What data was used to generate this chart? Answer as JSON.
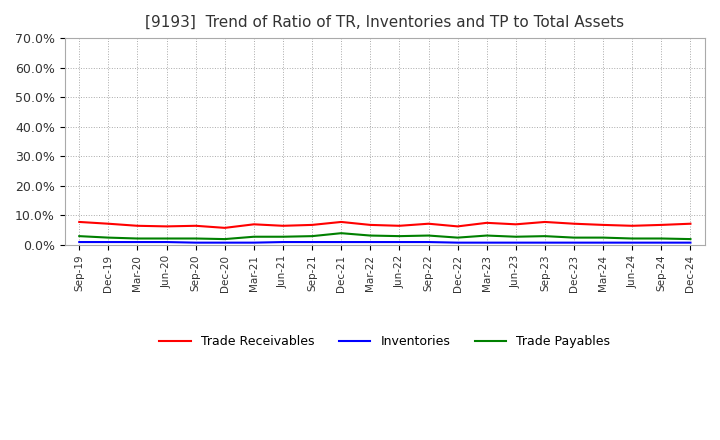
{
  "title": "[9193]  Trend of Ratio of TR, Inventories and TP to Total Assets",
  "title_fontsize": 11,
  "ylim": [
    0.0,
    0.7
  ],
  "yticks": [
    0.0,
    0.1,
    0.2,
    0.3,
    0.4,
    0.5,
    0.6,
    0.7
  ],
  "ytick_labels": [
    "0.0%",
    "10.0%",
    "20.0%",
    "30.0%",
    "40.0%",
    "50.0%",
    "60.0%",
    "70.0%"
  ],
  "x_labels": [
    "Sep-19",
    "Dec-19",
    "Mar-20",
    "Jun-20",
    "Sep-20",
    "Dec-20",
    "Mar-21",
    "Jun-21",
    "Sep-21",
    "Dec-21",
    "Mar-22",
    "Jun-22",
    "Sep-22",
    "Dec-22",
    "Mar-23",
    "Jun-23",
    "Sep-23",
    "Dec-23",
    "Mar-24",
    "Jun-24",
    "Sep-24",
    "Dec-24"
  ],
  "trade_receivables": [
    0.078,
    0.072,
    0.065,
    0.063,
    0.065,
    0.058,
    0.07,
    0.065,
    0.068,
    0.078,
    0.068,
    0.065,
    0.072,
    0.063,
    0.075,
    0.07,
    0.078,
    0.072,
    0.068,
    0.065,
    0.068,
    0.072
  ],
  "inventories": [
    0.01,
    0.01,
    0.01,
    0.01,
    0.008,
    0.008,
    0.008,
    0.01,
    0.01,
    0.01,
    0.01,
    0.01,
    0.01,
    0.008,
    0.008,
    0.008,
    0.008,
    0.008,
    0.008,
    0.008,
    0.008,
    0.008
  ],
  "trade_payables": [
    0.03,
    0.025,
    0.022,
    0.022,
    0.022,
    0.02,
    0.028,
    0.028,
    0.03,
    0.04,
    0.032,
    0.03,
    0.032,
    0.025,
    0.032,
    0.028,
    0.03,
    0.025,
    0.025,
    0.022,
    0.022,
    0.02
  ],
  "tr_color": "#ff0000",
  "inv_color": "#0000ff",
  "tp_color": "#008000",
  "tr_label": "Trade Receivables",
  "inv_label": "Inventories",
  "tp_label": "Trade Payables",
  "grid_color": "#aaaaaa",
  "background_color": "#ffffff",
  "line_width": 1.5
}
